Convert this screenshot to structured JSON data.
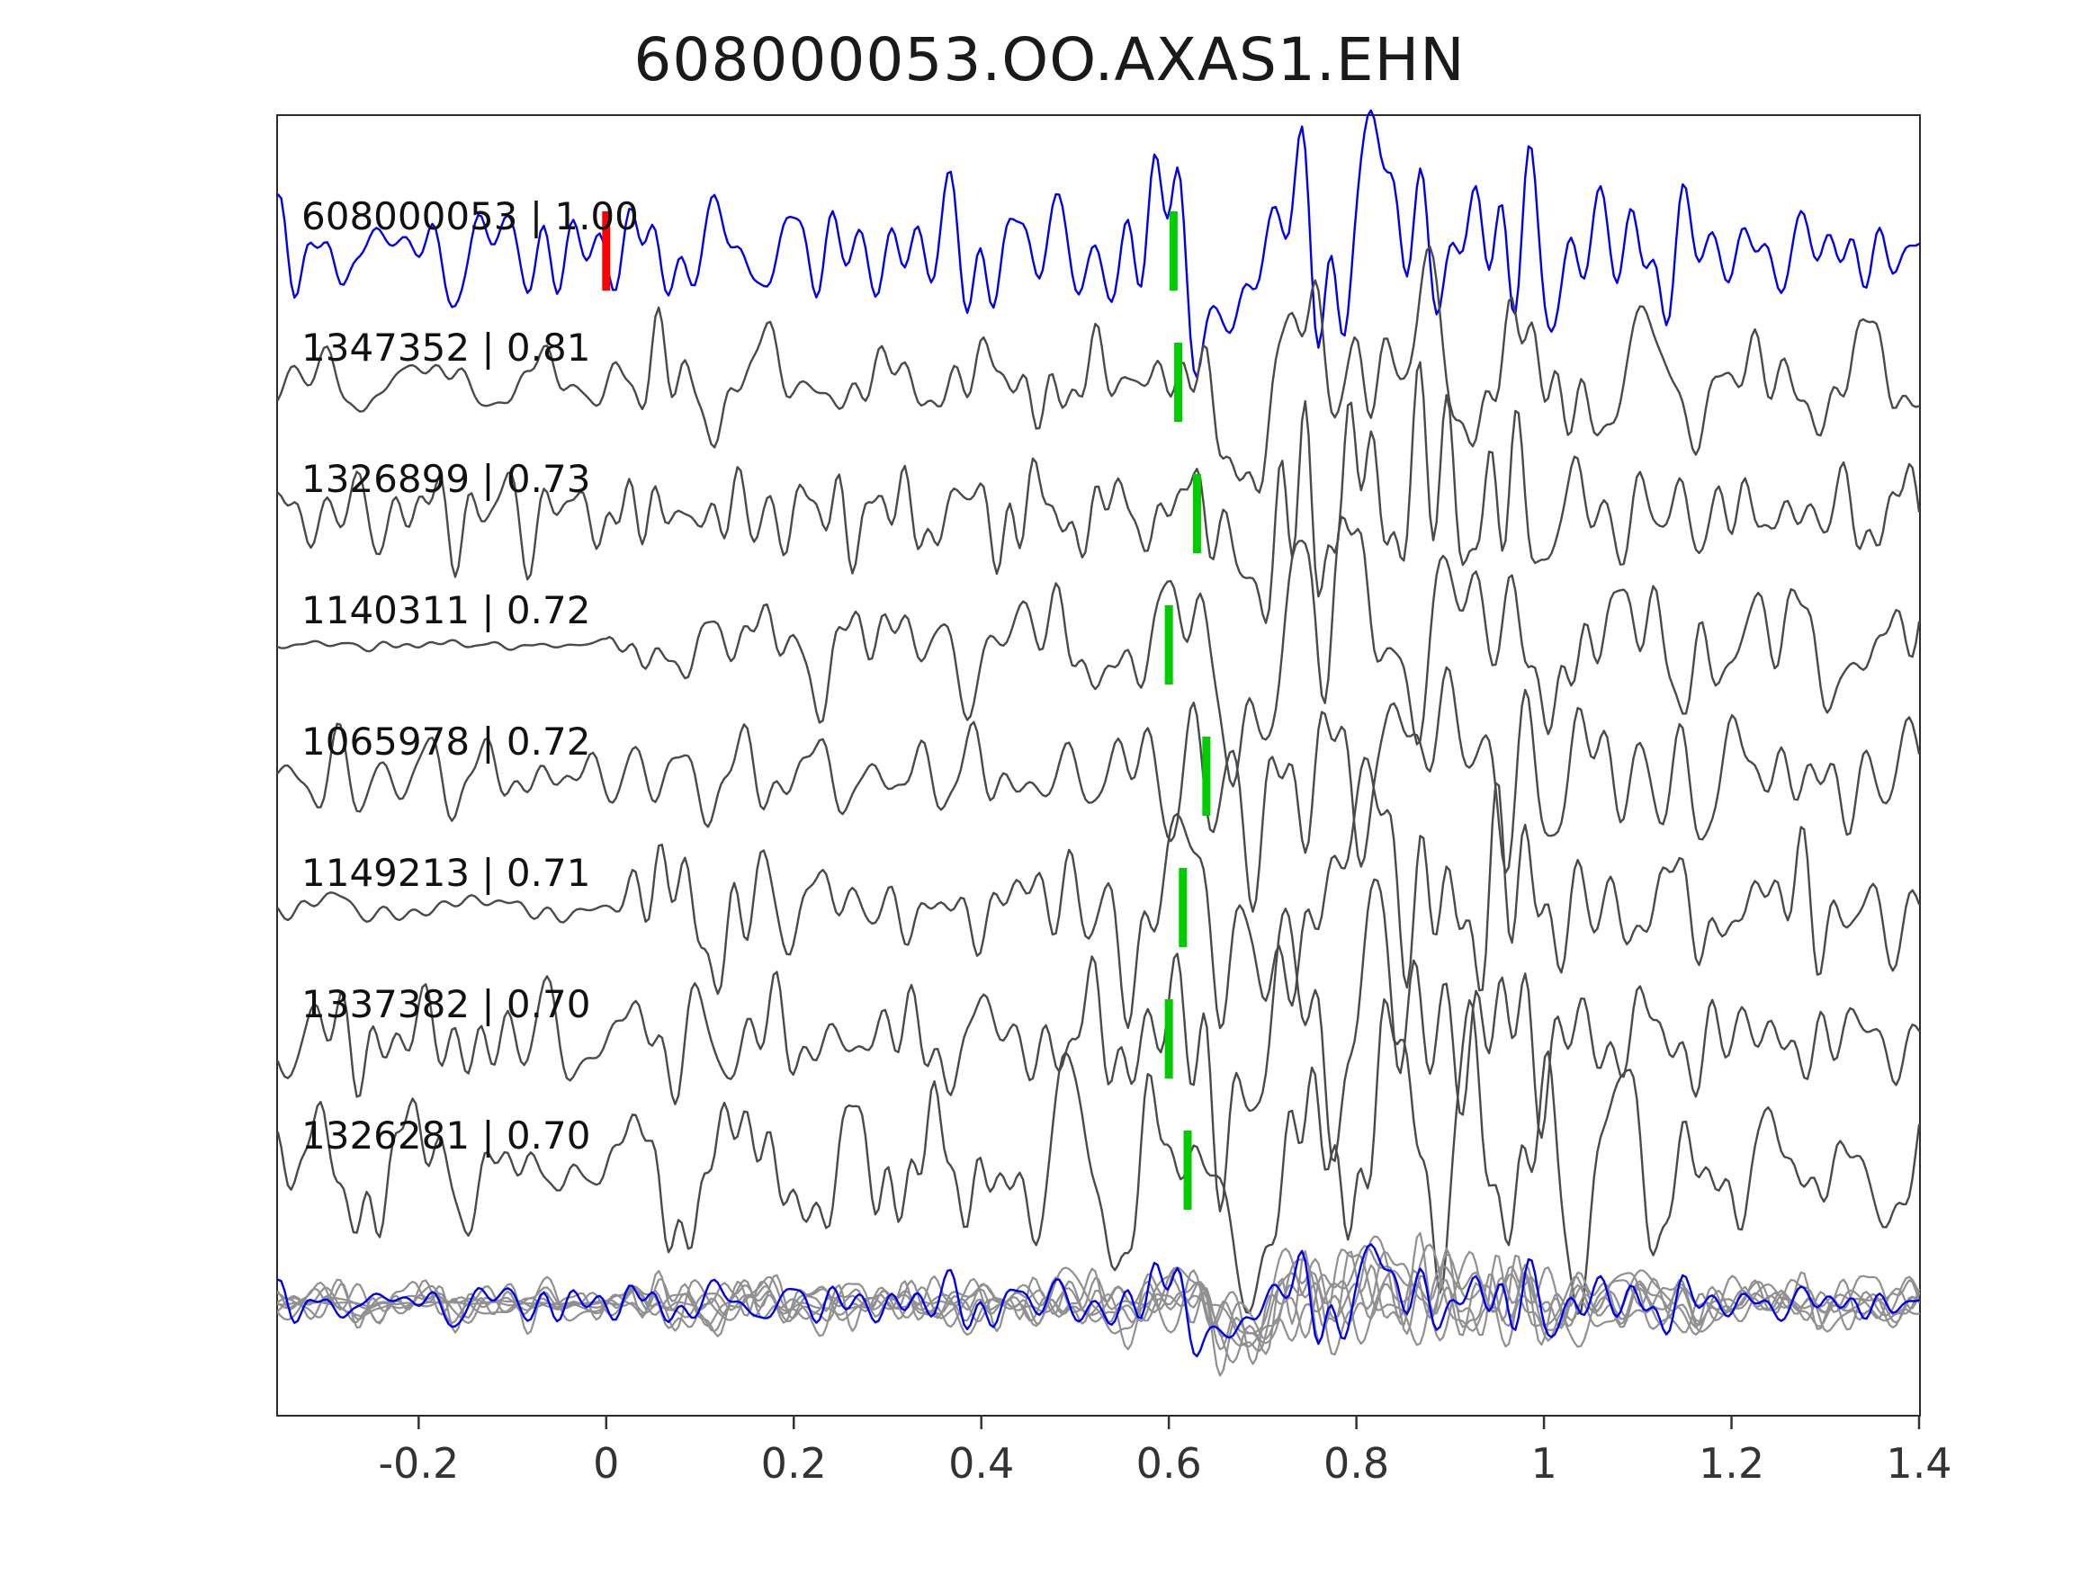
{
  "chart_data": {
    "type": "line",
    "title": "608000053.OO.AXAS1.EHN",
    "xlabel": "",
    "ylabel": "",
    "xlim": [
      -0.35,
      1.4
    ],
    "grid": false,
    "legend": false,
    "x_ticks": [
      -0.2,
      0,
      0.2,
      0.4,
      0.6,
      0.8,
      1,
      1.2,
      1.4
    ],
    "x_tick_labels": [
      "-0.2",
      "0",
      "0.2",
      "0.4",
      "0.6",
      "0.8",
      "1",
      "1.2",
      "1.4"
    ],
    "colors": {
      "template_trace": "#0000ee",
      "detection_trace": "#4a4a4a",
      "overlay_gray": "#909090",
      "pick_marker": "#00cc00",
      "origin_marker": "#ff0000",
      "axis": "#333333"
    },
    "traces": [
      {
        "label": "608000053 | 1.00",
        "event_id": "608000053",
        "correlation": 1.0,
        "role": "template",
        "pick_time": 0.605,
        "origin_marker_time": 0.0,
        "seed": 17,
        "pre": 0.85,
        "amp": 31
      },
      {
        "label": "1347352 | 0.81",
        "event_id": "1347352",
        "correlation": 0.81,
        "role": "detection",
        "pick_time": 0.61,
        "origin_marker_time": null,
        "seed": 23,
        "pre": 0.55,
        "amp": 30
      },
      {
        "label": "1326899 | 0.73",
        "event_id": "1326899",
        "correlation": 0.73,
        "role": "detection",
        "pick_time": 0.63,
        "origin_marker_time": null,
        "seed": 37,
        "pre": 0.75,
        "amp": 28
      },
      {
        "label": "1140311 | 0.72",
        "event_id": "1140311",
        "correlation": 0.72,
        "role": "detection",
        "pick_time": 0.6,
        "origin_marker_time": null,
        "seed": 41,
        "pre": 0.1,
        "amp": 31
      },
      {
        "label": "1065978 | 0.72",
        "event_id": "1065978",
        "correlation": 0.72,
        "role": "detection",
        "pick_time": 0.64,
        "origin_marker_time": null,
        "seed": 59,
        "pre": 0.7,
        "amp": 29
      },
      {
        "label": "1149213 | 0.71",
        "event_id": "1149213",
        "correlation": 0.71,
        "role": "detection",
        "pick_time": 0.615,
        "origin_marker_time": null,
        "seed": 61,
        "pre": 0.22,
        "amp": 34
      },
      {
        "label": "1337382 | 0.70",
        "event_id": "1337382",
        "correlation": 0.7,
        "role": "detection",
        "pick_time": 0.6,
        "origin_marker_time": null,
        "seed": 73,
        "pre": 0.8,
        "amp": 31
      },
      {
        "label": "1326281 | 0.70",
        "event_id": "1326281",
        "correlation": 0.7,
        "role": "detection",
        "pick_time": 0.62,
        "origin_marker_time": null,
        "seed": 89,
        "pre": 1.0,
        "amp": 43
      }
    ],
    "overlay_row": {
      "description": "all detection waveforms overlaid in gray with template waveform in blue",
      "amp": 13
    }
  }
}
